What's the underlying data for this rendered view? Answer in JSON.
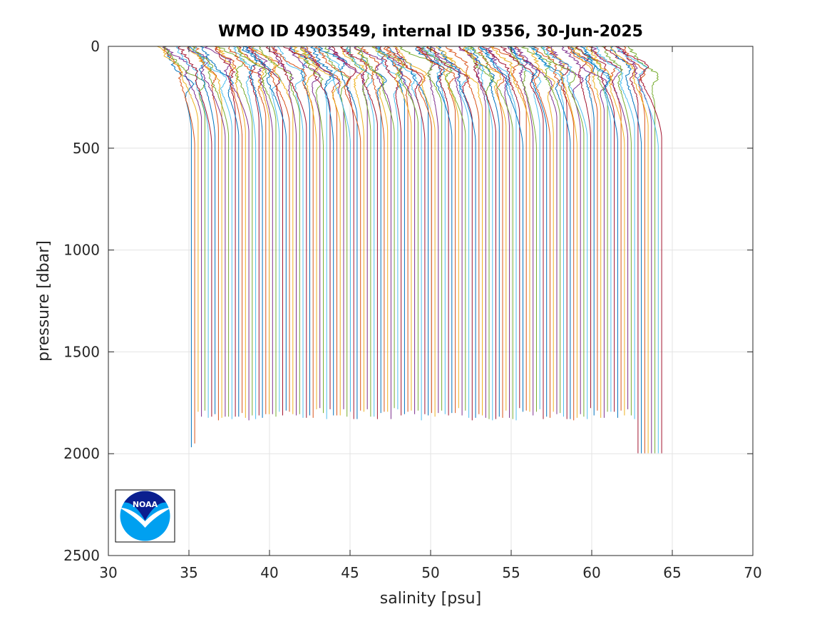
{
  "chart_data": {
    "type": "line",
    "title": "WMO ID 4903549, internal ID 9356, 30-Jun-2025",
    "xlabel": "salinity [psu]",
    "ylabel": "pressure [dbar]",
    "xlim": [
      30,
      70
    ],
    "ylim": [
      0,
      2500
    ],
    "y_reversed": true,
    "xticks": [
      30,
      35,
      40,
      45,
      50,
      55,
      60,
      65,
      70
    ],
    "yticks": [
      0,
      500,
      1000,
      1500,
      2000,
      2500
    ],
    "xtick_labels": [
      "30",
      "35",
      "40",
      "45",
      "50",
      "55",
      "60",
      "65",
      "70"
    ],
    "ytick_labels": [
      "0",
      "500",
      "1000",
      "1500",
      "2000",
      "2500"
    ],
    "grid": true,
    "profile_count": 140,
    "profile_offset_step": 0.21,
    "first_profile_deep_salinity": 35.15,
    "first_profile_surface_salinity": 34.0,
    "typical_max_pressure": 1800,
    "late_profiles_max_pressure": 2000,
    "color_cycle": [
      "#0072BD",
      "#D95319",
      "#EDB120",
      "#7E2F8E",
      "#77AC30",
      "#4DBEEE",
      "#A2142F"
    ],
    "logo": {
      "text": "NOAA",
      "dark_blue": "#0b1f8f",
      "light_blue": "#00a0f0"
    }
  }
}
